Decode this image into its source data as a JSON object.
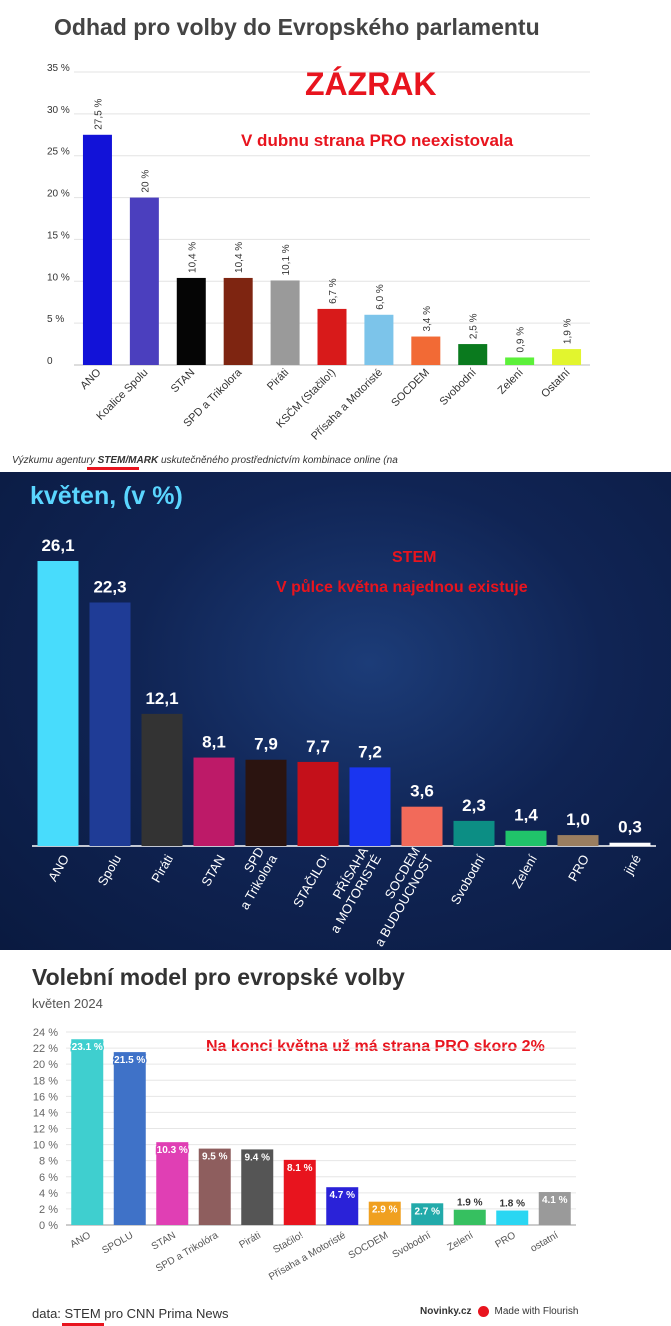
{
  "chart_data": [
    {
      "type": "bar",
      "title": "Odhad pro volby do Evropského parlamentu",
      "categories": [
        "ANO",
        "Koalice Spolu",
        "STAN",
        "SPD a Trikolora",
        "Piráti",
        "KSČM (Stačilo!)",
        "Přísaha a Motoristé",
        "SOCDEM",
        "Svobodní",
        "Zelení",
        "Ostatní"
      ],
      "values": [
        27.5,
        20,
        10.4,
        10.4,
        10.1,
        6.7,
        6.0,
        3.4,
        2.5,
        0.9,
        1.9
      ],
      "value_labels": [
        "27,5 %",
        "20 %",
        "10,4 %",
        "10,4 %",
        "10,1 %",
        "6,7 %",
        "6,0 %",
        "3,4 %",
        "2,5 %",
        "0,9 %",
        "1,9 %"
      ],
      "colors": [
        "#1212d8",
        "#4b3fbe",
        "#050505",
        "#7e2511",
        "#9a9a9a",
        "#d81a1a",
        "#7cc4ea",
        "#f26a35",
        "#0a7a1e",
        "#5cf03a",
        "#e2f52e"
      ],
      "yticks": [
        "0",
        "5 %",
        "10 %",
        "15 %",
        "20 %",
        "25 %",
        "30 %",
        "35 %"
      ],
      "ylim": [
        0,
        35
      ],
      "xlabel": "",
      "ylabel": "",
      "grid": true
    },
    {
      "type": "bar",
      "title": "květen, (v %)",
      "categories": [
        "ANO",
        "Spolu",
        "Piráti",
        "STAN",
        "SPD\na Trikolora",
        "STAČILO!",
        "PŘÍSAHA\na MOTORISTÉ",
        "SOCDEM\na BUDOUCNOST",
        "Svobodní",
        "Zelení",
        "PRO",
        "jiné"
      ],
      "values": [
        26.1,
        22.3,
        12.1,
        8.1,
        7.9,
        7.7,
        7.2,
        3.6,
        2.3,
        1.4,
        1.0,
        0.3
      ],
      "value_labels": [
        "26,1",
        "22,3",
        "12,1",
        "8,1",
        "7,9",
        "7,7",
        "7,2",
        "3,6",
        "2,3",
        "1,4",
        "1,0",
        "0,3"
      ],
      "colors": [
        "#48dcfc",
        "#1f3c96",
        "#333333",
        "#bd1a68",
        "#2b1410",
        "#c4101a",
        "#1a35f0",
        "#f26a5a",
        "#0c8e84",
        "#20c46a",
        "#9a7e60",
        "#ffffff"
      ],
      "ylim": [
        0,
        28
      ],
      "xlabel": "",
      "ylabel": "",
      "grid": false
    },
    {
      "type": "bar",
      "title": "Volební model pro evropské volby",
      "subtitle": "květen 2024",
      "categories": [
        "ANO",
        "SPOLU",
        "STAN",
        "SPD a Trikolóra",
        "Piráti",
        "Stačilo!",
        "Přísaha a Motoristé",
        "SOCDEM",
        "Svobodní",
        "Zelení",
        "PRO",
        "ostatní"
      ],
      "values": [
        23.1,
        21.5,
        10.3,
        9.5,
        9.4,
        8.1,
        4.7,
        2.9,
        2.7,
        1.9,
        1.8,
        4.1
      ],
      "value_labels": [
        "23.1 %",
        "21.5 %",
        "10.3 %",
        "9.5 %",
        "9.4 %",
        "8.1 %",
        "4.7 %",
        "2.9 %",
        "2.7 %",
        "1.9 %",
        "1.8 %",
        "4.1 %"
      ],
      "colors": [
        "#3fcfcf",
        "#3f72c8",
        "#e03fb4",
        "#8e5e5e",
        "#555555",
        "#e8141e",
        "#2a22d8",
        "#f0a020",
        "#22aaaa",
        "#36c060",
        "#2ad6f2",
        "#9a9a9a"
      ],
      "yticks": [
        "0 %",
        "2 %",
        "4 %",
        "6 %",
        "8 %",
        "10 %",
        "12 %",
        "14 %",
        "16 %",
        "18 %",
        "20 %",
        "22 %",
        "24 %"
      ],
      "ylim": [
        0,
        24
      ],
      "xlabel": "",
      "ylabel": "",
      "grid": true
    }
  ],
  "panel1": {
    "headline": "ZÁZRAK",
    "annotation": "V dubnu strana PRO neexistovala",
    "source_prefix": "Výzkumu agentury ",
    "source_agency": "STEM/MARK",
    "source_suffix": " uskutečněného prostřednictvím kombinace online (na"
  },
  "panel2": {
    "annotation_line1": "STEM",
    "annotation_line2": "V půlce května najednou existuje"
  },
  "panel3": {
    "annotation": "Na konci května už má strana PRO skoro 2%",
    "source_prefix": "data: ",
    "source_agency": "STEM",
    "source_suffix": " pro CNN Prima News",
    "credit_brand": "Novinky.cz",
    "credit_text": "Made with Flourish"
  }
}
